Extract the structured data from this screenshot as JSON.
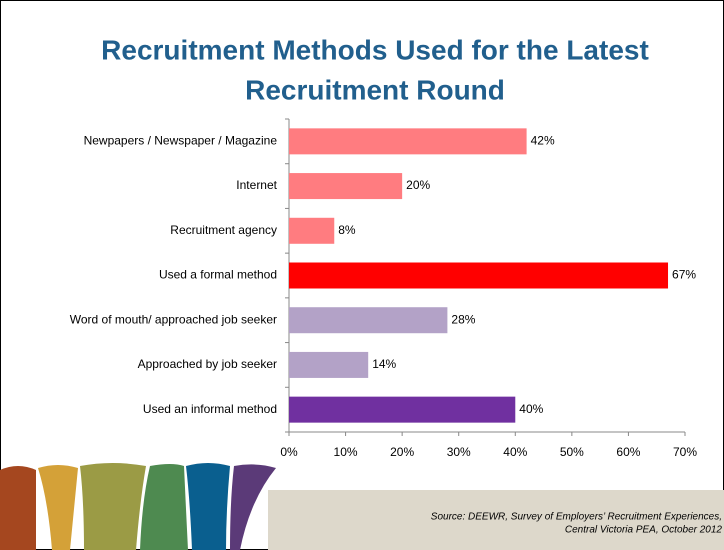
{
  "chart_data": {
    "type": "bar",
    "orientation": "horizontal",
    "title_lines": [
      "Recruitment Methods Used for the Latest",
      "Recruitment Round"
    ],
    "categories": [
      "Newpapers / Newspaper / Magazine",
      "Internet",
      "Recruitment agency",
      "Used a formal method",
      "Word of mouth/ approached job seeker",
      "Approached by job seeker",
      "Used an informal method"
    ],
    "values": [
      42,
      20,
      8,
      67,
      28,
      14,
      40
    ],
    "value_labels": [
      "42%",
      "20%",
      "8%",
      "67%",
      "28%",
      "14%",
      "40%"
    ],
    "colors": [
      "#ff7c80",
      "#ff7c80",
      "#ff7c80",
      "#ff0000",
      "#b3a2c7",
      "#b3a2c7",
      "#7030a0"
    ],
    "xlim": [
      0,
      70
    ],
    "xticks": [
      {
        "value": 0,
        "label": "0%"
      },
      {
        "value": 10,
        "label": "10%"
      },
      {
        "value": 20,
        "label": "20%"
      },
      {
        "value": 30,
        "label": "30%"
      },
      {
        "value": 40,
        "label": "40%"
      },
      {
        "value": 50,
        "label": "50%"
      },
      {
        "value": 60,
        "label": "60%"
      },
      {
        "value": 70,
        "label": "70%"
      }
    ],
    "grid": false
  },
  "footer": {
    "source_lines": [
      "Source:  DEEWR, Survey of Employers’ Recruitment Experiences,",
      "Central Victoria PEA, October 2012"
    ]
  }
}
